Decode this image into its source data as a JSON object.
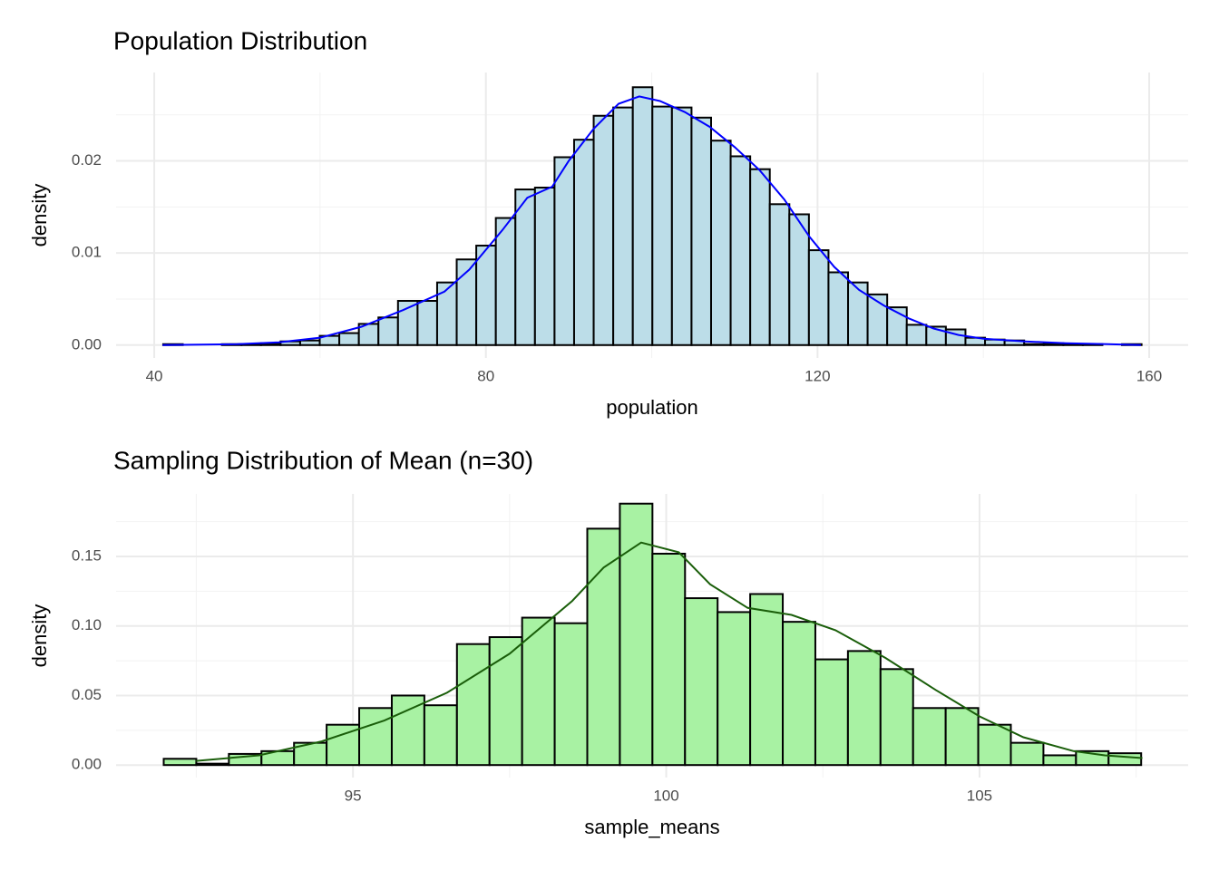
{
  "chart_data": [
    {
      "type": "histogram",
      "title": "Population Distribution",
      "x_label": "population",
      "y_label": "density",
      "bins": [
        41.08,
        43.44,
        45.8,
        48.16,
        50.52,
        52.88,
        55.24,
        57.6,
        59.96,
        62.32,
        64.68,
        67.04,
        69.4,
        71.76,
        74.12,
        76.48,
        78.84,
        81.2,
        83.56,
        85.92,
        88.28,
        90.64,
        93,
        95.36,
        97.72,
        100.08,
        102.44,
        104.8,
        107.16,
        109.52,
        111.88,
        114.24,
        116.6,
        118.96,
        121.32,
        123.68,
        126.04,
        128.4,
        130.76,
        133.12,
        135.48,
        137.84,
        140.2,
        142.56,
        144.92,
        147.28,
        149.64,
        152,
        154.36,
        156.72,
        159.08
      ],
      "values": [
        0.0001,
        0,
        0,
        0.0001,
        0.0001,
        0.0002,
        0.0004,
        0.0005,
        0.001,
        0.0013,
        0.0023,
        0.003,
        0.0048,
        0.0048,
        0.0068,
        0.0093,
        0.0108,
        0.0138,
        0.0169,
        0.0171,
        0.0204,
        0.0223,
        0.0249,
        0.0258,
        0.028,
        0.0259,
        0.0258,
        0.0247,
        0.0222,
        0.0205,
        0.0191,
        0.0153,
        0.0142,
        0.0103,
        0.0079,
        0.0068,
        0.0055,
        0.0041,
        0.0022,
        0.002,
        0.0017,
        0.0008,
        0.0006,
        0.0005,
        0.0001,
        0.0002,
        0.0001,
        0.0001,
        0,
        0.0001
      ],
      "color": "#bcdde8",
      "edge_color": "#000000",
      "density": {
        "color": "#0000ff",
        "x": [
          41,
          50,
          55,
          60,
          65,
          70,
          75,
          78,
          82,
          85,
          88,
          90,
          93,
          96,
          98.5,
          101,
          104,
          107,
          110,
          113,
          116,
          119,
          122,
          125,
          128,
          131,
          134,
          137,
          140,
          145,
          150,
          155,
          159
        ],
        "y": [
          0,
          0.0001,
          0.0003,
          0.0008,
          0.002,
          0.0038,
          0.0058,
          0.0082,
          0.0125,
          0.016,
          0.0172,
          0.02,
          0.0235,
          0.0262,
          0.027,
          0.0265,
          0.0253,
          0.0237,
          0.0215,
          0.019,
          0.0158,
          0.0118,
          0.0085,
          0.006,
          0.0043,
          0.0029,
          0.0018,
          0.0011,
          0.0007,
          0.0004,
          0.0002,
          0.0001,
          0
        ]
      },
      "xlim": [
        35.4,
        164.7
      ],
      "ylim": [
        -0.0014,
        0.0296
      ],
      "xticks": [
        40,
        80,
        120,
        160
      ],
      "yticks": [
        {
          "value": 0,
          "label": "0.00"
        },
        {
          "value": 0.01,
          "label": "0.01"
        },
        {
          "value": 0.02,
          "label": "0.02"
        }
      ],
      "grid": true
    },
    {
      "type": "histogram",
      "title": "Sampling Distribution of Mean (n=30)",
      "x_label": "sample_means",
      "y_label": "density",
      "bins": [
        91.98,
        92.5,
        93.02,
        93.54,
        94.06,
        94.58,
        95.1,
        95.62,
        96.14,
        96.66,
        97.18,
        97.7,
        98.22,
        98.74,
        99.26,
        99.78,
        100.3,
        100.82,
        101.34,
        101.86,
        102.38,
        102.9,
        103.42,
        103.94,
        104.46,
        104.98,
        105.5,
        106.02,
        106.54,
        107.06,
        107.58
      ],
      "values": [
        0.0045,
        0.001,
        0.008,
        0.01,
        0.016,
        0.029,
        0.041,
        0.05,
        0.043,
        0.087,
        0.092,
        0.106,
        0.102,
        0.17,
        0.188,
        0.152,
        0.12,
        0.11,
        0.123,
        0.103,
        0.076,
        0.082,
        0.069,
        0.041,
        0.041,
        0.029,
        0.016,
        0.007,
        0.01,
        0.0085
      ],
      "color": "#a8f2a3",
      "edge_color": "#000000",
      "density": {
        "color": "#1a5e0a",
        "x": [
          92.5,
          93.5,
          94.5,
          95.5,
          96.5,
          97.5,
          98.5,
          99,
          99.6,
          100.2,
          100.7,
          101.3,
          102,
          102.7,
          103.5,
          104.3,
          105,
          105.7,
          106.5,
          107,
          107.6
        ],
        "y": [
          0.003,
          0.007,
          0.017,
          0.032,
          0.052,
          0.08,
          0.118,
          0.142,
          0.16,
          0.153,
          0.13,
          0.113,
          0.108,
          0.097,
          0.077,
          0.054,
          0.035,
          0.02,
          0.01,
          0.007,
          0.005
        ]
      },
      "xlim": [
        91.22,
        108.33
      ],
      "ylim": [
        -0.009,
        0.195
      ],
      "xticks": [
        95,
        100,
        105
      ],
      "yticks": [
        {
          "value": 0,
          "label": "0.00"
        },
        {
          "value": 0.05,
          "label": "0.05"
        },
        {
          "value": 0.1,
          "label": "0.10"
        },
        {
          "value": 0.15,
          "label": "0.15"
        }
      ],
      "grid": true
    }
  ]
}
